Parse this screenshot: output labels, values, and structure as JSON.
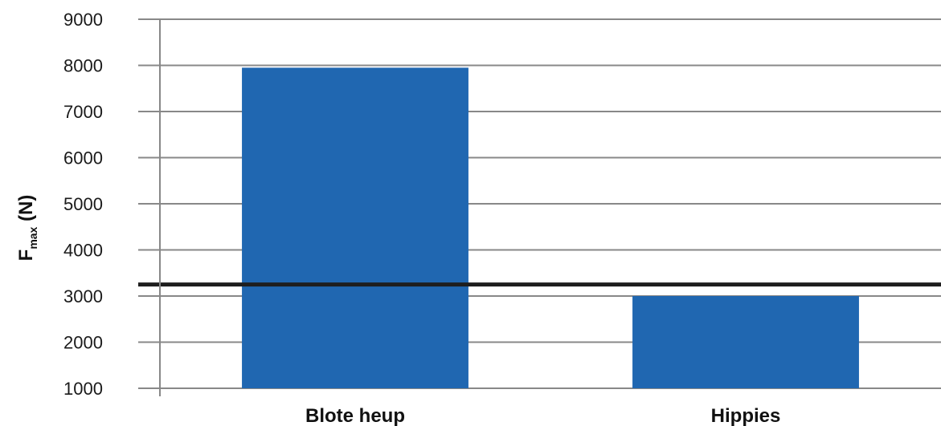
{
  "chart_data": {
    "type": "bar",
    "categories": [
      "Blote heup",
      "Hippies"
    ],
    "values": [
      7950,
      3000
    ],
    "ylabel": {
      "main": "F",
      "subscript": "max",
      "suffix": " (N)"
    },
    "ylim": [
      1000,
      9000
    ],
    "yticks": [
      1000,
      2000,
      3000,
      4000,
      5000,
      6000,
      7000,
      8000,
      9000
    ],
    "reference_line": 3250,
    "grid": true,
    "colors": {
      "bar": "#2067b1",
      "reference_line": "#1e1e1e",
      "grid": "#888888"
    }
  }
}
